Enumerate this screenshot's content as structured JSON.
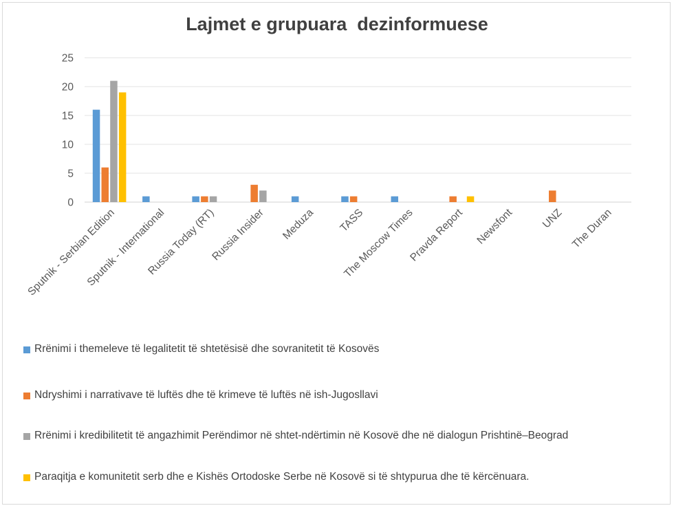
{
  "chart_data": {
    "type": "bar",
    "title": "Lajmet e grupuara  dezinformuese",
    "xlabel": "",
    "ylabel": "",
    "ylim": [
      0,
      25
    ],
    "yticks": [
      0,
      5,
      10,
      15,
      20,
      25
    ],
    "grid": true,
    "legend_position": "bottom",
    "categories": [
      "Sputnik - Serbian Edition",
      "Sputnik - International",
      "Russia Today (RT)",
      "Russia Insider",
      "Meduza",
      "TASS",
      "The Moscow Times",
      "Pravda Report",
      "Newsfont",
      "UNZ",
      "The Duran"
    ],
    "series": [
      {
        "name": "Rrënimi i themeleve të legalitetit të shtetësisë dhe sovranitetit të Kosovës",
        "color": "#5B9BD5",
        "values": [
          16,
          1,
          1,
          0,
          1,
          1,
          1,
          0,
          0,
          0,
          0
        ]
      },
      {
        "name": "Ndryshimi i narrativave të luftës dhe të krimeve të luftës në ish-Jugosllavi",
        "color": "#ED7D31",
        "values": [
          6,
          0,
          1,
          3,
          0,
          1,
          0,
          1,
          0,
          2,
          0
        ]
      },
      {
        "name": "Rrënimi i kredibilitetit të angazhimit Perëndimor në shtet-ndërtimin në Kosovë dhe në dialogun Prishtinë–Beograd",
        "color": "#A5A5A5",
        "values": [
          21,
          0,
          1,
          2,
          0,
          0,
          0,
          0,
          0,
          0,
          0
        ]
      },
      {
        "name": "Paraqitja e komunitetit serb dhe e Kishës Ortodoske Serbe në Kosovë si të shtypurua dhe të kërcënuara.",
        "color": "#FFC000",
        "values": [
          19,
          0,
          0,
          0,
          0,
          0,
          0,
          1,
          0,
          0,
          0
        ]
      }
    ]
  }
}
